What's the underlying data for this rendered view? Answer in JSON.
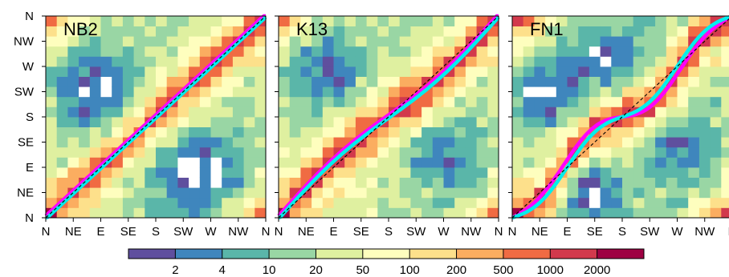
{
  "chart_data": {
    "type": "heatmap",
    "x_tick_labels": [
      "N",
      "NE",
      "E",
      "SE",
      "S",
      "SW",
      "W",
      "NW",
      "N"
    ],
    "y_tick_labels": [
      "N",
      "NE",
      "E",
      "SE",
      "S",
      "SW",
      "W",
      "NW",
      "N"
    ],
    "grid_size": 20,
    "panels": [
      {
        "label": "NB2",
        "model": "nb2"
      },
      {
        "label": "K13",
        "model": "k13"
      },
      {
        "label": "FN1",
        "model": "fn1"
      }
    ],
    "series": [
      {
        "color": "#ff00ff",
        "role": "magenta-curve"
      },
      {
        "color": "#00eeee",
        "role": "cyan-curve"
      },
      {
        "color": "#000000",
        "role": "diagonal-reference",
        "style": "dashed"
      }
    ],
    "colorbar": {
      "tick_labels": [
        "2",
        "4",
        "10",
        "20",
        "50",
        "100",
        "200",
        "500",
        "1000",
        "2000"
      ],
      "colors": [
        "#5f4f9e",
        "#3f86bd",
        "#5ab6a9",
        "#99d6a4",
        "#dff0a0",
        "#fefebe",
        "#fde08b",
        "#fbad60",
        "#f06b43",
        "#d2394c",
        "#9e0142"
      ]
    }
  }
}
